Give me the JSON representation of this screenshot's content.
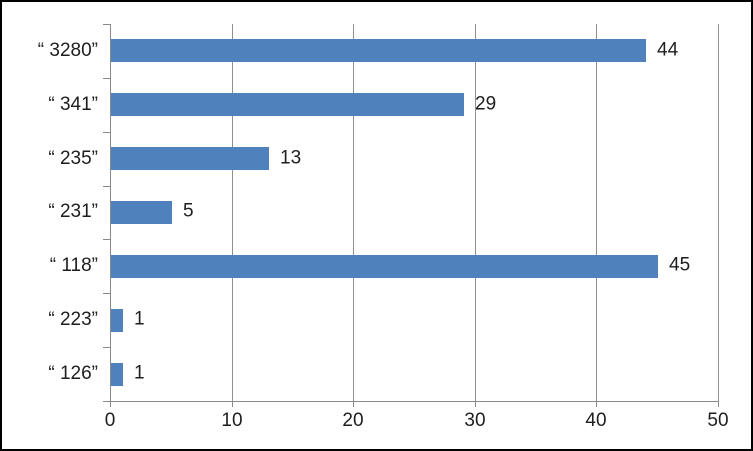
{
  "chart_data": {
    "type": "bar",
    "orientation": "horizontal",
    "title": "",
    "xlabel": "",
    "ylabel": "",
    "categories": [
      "“ 3280”",
      "“ 341”",
      "“ 235”",
      "“ 231”",
      "“ 118”",
      "“ 223”",
      "“ 126”"
    ],
    "values": [
      44,
      29,
      13,
      5,
      45,
      1,
      1
    ],
    "data_labels": [
      "44",
      "29",
      "13",
      "5",
      "45",
      "1",
      "1"
    ],
    "xlim": [
      0,
      50
    ],
    "x_tick_labels": [
      "0",
      "10",
      "20",
      "30",
      "40",
      "50"
    ],
    "x_tick_values": [
      0,
      10,
      20,
      30,
      40,
      50
    ],
    "grid": "vertical-on",
    "legend": "none",
    "colors": {
      "bar": "#4F81BD",
      "gridline": "#8f8f8f",
      "axis": "#8a8a8a",
      "text": "#1e1e1e",
      "frame_border": "#000000",
      "background": "#ffffff"
    }
  }
}
